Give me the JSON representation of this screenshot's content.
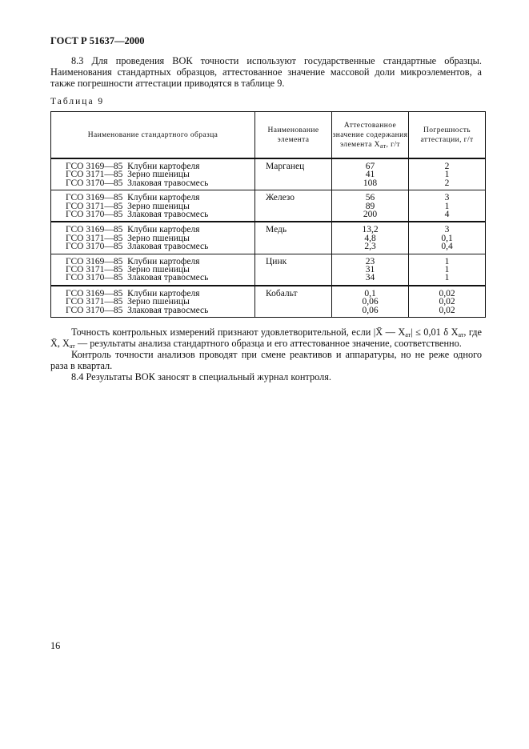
{
  "header": "ГОСТ Р 51637—2000",
  "para_8_3": "8.3 Для проведения ВОК точности используют государственные стандартные образцы. Наименования стандартных образцов, аттестованное значение массовой доли микроэлементов, а также погрешности аттестации приводятся в таблице 9.",
  "table_caption": "Таблица 9",
  "table": {
    "headers": [
      "Наименование стандартного образца",
      "Наименование элемента",
      "Аттестованное значение содержания элемента X",
      "Погрешность аттестации, г/т"
    ],
    "header_sub": "ат",
    "header_unit": ", г/т",
    "groups": [
      {
        "element": "Марганец",
        "samples": [
          "ГСО 3169—85  Клубни картофеля",
          "ГСО 3171—85  Зерно пшеницы",
          "ГСО 3170—85  Злаковая травосмесь"
        ],
        "values": [
          "67",
          "41",
          "108"
        ],
        "errors": [
          "2",
          "1",
          "2"
        ]
      },
      {
        "element": "Железо",
        "samples": [
          "ГСО 3169—85  Клубни картофеля",
          "ГСО 3171—85  Зерно пшеницы",
          "ГСО 3170—85  Злаковая травосмесь"
        ],
        "values": [
          "56",
          "89",
          "200"
        ],
        "errors": [
          "3",
          "1",
          "4"
        ]
      },
      {
        "element": "Медь",
        "samples": [
          "ГСО 3169—85  Клубни картофеля",
          "ГСО 3171—85  Зерно пшеницы",
          "ГСО 3170—85  Злаковая травосмесь"
        ],
        "values": [
          "13,2",
          "4,8",
          "2,3"
        ],
        "errors": [
          "3",
          "0,1",
          "0,4"
        ]
      },
      {
        "element": "Цинк",
        "samples": [
          "ГСО 3169—85  Клубни картофеля",
          "ГСО 3171—85  Зерно пшеницы",
          "ГСО 3170—85  Злаковая травосмесь"
        ],
        "values": [
          "23",
          "31",
          "34"
        ],
        "errors": [
          "1",
          "1",
          "1"
        ]
      },
      {
        "element": "Кобальт",
        "samples": [
          "ГСО 3169—85  Клубни картофеля",
          "ГСО 3171—85  Зерно пшеницы",
          "ГСО 3170—85  Злаковая травосмесь"
        ],
        "values": [
          "0,1",
          "0,06",
          "0,06"
        ],
        "errors": [
          "0,02",
          "0,02",
          "0,02"
        ]
      }
    ]
  },
  "para_accuracy": {
    "a": "Точность контрольных измерений признают удовлетворительной, если |X̄ — X",
    "sub": "ат",
    "b": "| ≤ 0,01 δ X",
    "c": ", где",
    "d": "X̄, X",
    "e": " — результаты анализа стандартного образца и его аттестованное значение, соответственно."
  },
  "para_control": "Контроль точности анализов проводят при смене реактивов и аппаратуры, но не реже одного раза в квартал.",
  "para_8_4": "8.4 Результаты ВОК заносят в специальный журнал контроля.",
  "page_number": "16"
}
